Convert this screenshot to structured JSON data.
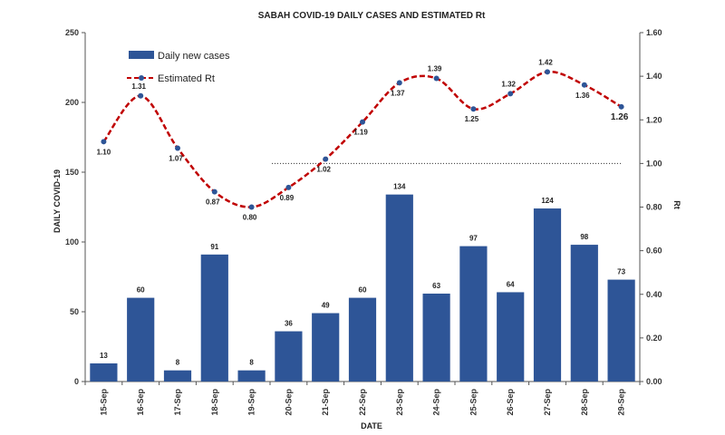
{
  "chart_data": {
    "type": "bar",
    "title": "SABAH COVID-19 DAILY CASES AND ESTIMATED  Rt",
    "xlabel": "DATE",
    "ylabel": "DAILY COVID-19",
    "y2label": "Rt",
    "ylim": [
      0,
      250
    ],
    "y2lim": [
      0,
      1.6
    ],
    "yticks": [
      "0",
      "50",
      "100",
      "150",
      "200",
      "250"
    ],
    "y2ticks": [
      "0.00",
      "0.20",
      "0.40",
      "0.60",
      "0.80",
      "1.00",
      "1.20",
      "1.40",
      "1.60"
    ],
    "categories": [
      "15-Sep",
      "16-Sep",
      "17-Sep",
      "18-Sep",
      "19-Sep",
      "20-Sep",
      "21-Sep",
      "22-Sep",
      "23-Sep",
      "24-Sep",
      "25-Sep",
      "26-Sep",
      "27-Sep",
      "28-Sep",
      "29-Sep"
    ],
    "series": [
      {
        "name": "Daily new cases",
        "axis": "left",
        "kind": "bar",
        "color": "#2e5597",
        "values": [
          13,
          60,
          8,
          91,
          8,
          36,
          49,
          60,
          134,
          63,
          97,
          64,
          124,
          98,
          73
        ],
        "labels": [
          "13",
          "60",
          "8",
          "91",
          "8",
          "36",
          "49",
          "60",
          "134",
          "63",
          "97",
          "64",
          "124",
          "98",
          "73"
        ]
      },
      {
        "name": "Estimated Rt",
        "axis": "right",
        "kind": "line",
        "color": "#c00000",
        "marker_color": "#2e5597",
        "values": [
          1.1,
          1.31,
          1.07,
          0.87,
          0.8,
          0.89,
          1.02,
          1.19,
          1.37,
          1.39,
          1.25,
          1.32,
          1.42,
          1.36,
          1.26
        ],
        "labels": [
          "1.10",
          "1.31",
          "1.07",
          "0.87",
          "0.80",
          "0.89",
          "1.02",
          "1.19",
          "1.37",
          "1.39",
          "1.25",
          "1.32",
          "1.42",
          "1.36",
          "1.26"
        ]
      }
    ],
    "reference_line": {
      "axis": "right",
      "value": 1.0,
      "style": "dotted"
    },
    "legend": {
      "position": "top-left",
      "entries": [
        "Daily new cases",
        "Estimated Rt"
      ]
    },
    "grid": false
  }
}
